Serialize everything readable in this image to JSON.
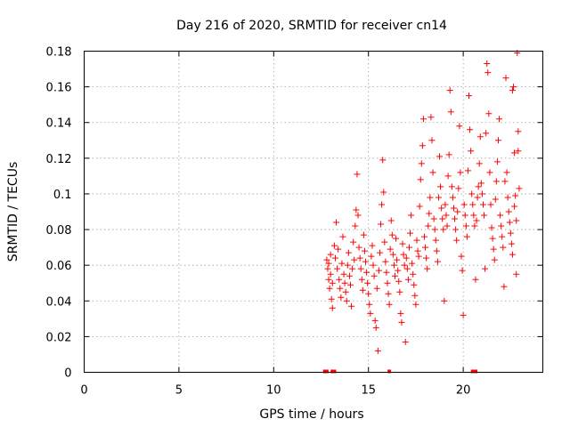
{
  "chart_data": {
    "type": "scatter",
    "title": "Day 216 of 2020, SRMTID for receiver cn14",
    "xlabel": "GPS time / hours",
    "ylabel": "SRMTID / TECUs",
    "xlim": [
      0,
      24.2
    ],
    "ylim": [
      0,
      0.18
    ],
    "xticks": [
      0,
      5,
      10,
      15,
      20
    ],
    "xtick_labels": [
      "0",
      "5",
      "10",
      "15",
      "20"
    ],
    "yticks": [
      0,
      0.02,
      0.04,
      0.06,
      0.08,
      0.1,
      0.12,
      0.14,
      0.16,
      0.18
    ],
    "ytick_labels": [
      "0",
      "0.02",
      "0.04",
      "0.06",
      "0.08",
      "0.1",
      "0.12",
      "0.14",
      "0.16",
      "0.18"
    ],
    "grid": true,
    "legend": "none",
    "marker": "+",
    "marker_color": "#ff0000",
    "series": [
      {
        "name": "SRMTID",
        "points": [
          [
            12.8,
            0.063
          ],
          [
            12.85,
            0.058
          ],
          [
            12.9,
            0.052
          ],
          [
            12.95,
            0.047
          ],
          [
            13.0,
            0.066
          ],
          [
            13.05,
            0.041
          ],
          [
            13.1,
            0.036
          ],
          [
            12.9,
            0.061
          ],
          [
            13.0,
            0.055
          ],
          [
            13.1,
            0.05
          ],
          [
            13.2,
            0.071
          ],
          [
            13.25,
            0.064
          ],
          [
            13.3,
            0.084
          ],
          [
            13.35,
            0.058
          ],
          [
            13.4,
            0.069
          ],
          [
            13.45,
            0.052
          ],
          [
            13.5,
            0.047
          ],
          [
            13.55,
            0.042
          ],
          [
            13.6,
            0.061
          ],
          [
            13.65,
            0.076
          ],
          [
            13.7,
            0.055
          ],
          [
            13.75,
            0.05
          ],
          [
            13.8,
            0.045
          ],
          [
            13.85,
            0.04
          ],
          [
            13.9,
            0.06
          ],
          [
            13.95,
            0.067
          ],
          [
            14.0,
            0.054
          ],
          [
            14.05,
            0.049
          ],
          [
            14.1,
            0.037
          ],
          [
            14.15,
            0.058
          ],
          [
            14.2,
            0.073
          ],
          [
            14.25,
            0.063
          ],
          [
            14.3,
            0.082
          ],
          [
            14.35,
            0.091
          ],
          [
            14.4,
            0.111
          ],
          [
            14.45,
            0.088
          ],
          [
            14.5,
            0.07
          ],
          [
            14.55,
            0.064
          ],
          [
            14.6,
            0.058
          ],
          [
            14.65,
            0.052
          ],
          [
            14.7,
            0.046
          ],
          [
            14.75,
            0.077
          ],
          [
            14.8,
            0.068
          ],
          [
            14.85,
            0.062
          ],
          [
            14.9,
            0.056
          ],
          [
            14.95,
            0.05
          ],
          [
            15.0,
            0.044
          ],
          [
            15.05,
            0.038
          ],
          [
            15.1,
            0.033
          ],
          [
            15.15,
            0.065
          ],
          [
            15.2,
            0.071
          ],
          [
            15.25,
            0.06
          ],
          [
            15.3,
            0.054
          ],
          [
            15.35,
            0.029
          ],
          [
            15.4,
            0.025
          ],
          [
            15.45,
            0.047
          ],
          [
            15.5,
            0.012
          ],
          [
            15.55,
            0.057
          ],
          [
            15.6,
            0.067
          ],
          [
            15.65,
            0.083
          ],
          [
            15.7,
            0.094
          ],
          [
            15.75,
            0.119
          ],
          [
            15.8,
            0.101
          ],
          [
            15.85,
            0.073
          ],
          [
            15.9,
            0.062
          ],
          [
            15.95,
            0.056
          ],
          [
            16.0,
            0.05
          ],
          [
            16.05,
            0.044
          ],
          [
            16.1,
            0.038
          ],
          [
            16.15,
            0.069
          ],
          [
            16.2,
            0.085
          ],
          [
            16.25,
            0.077
          ],
          [
            16.3,
            0.066
          ],
          [
            16.35,
            0.06
          ],
          [
            16.4,
            0.054
          ],
          [
            16.45,
            0.075
          ],
          [
            16.5,
            0.063
          ],
          [
            16.55,
            0.057
          ],
          [
            16.6,
            0.051
          ],
          [
            16.65,
            0.045
          ],
          [
            16.7,
            0.033
          ],
          [
            16.75,
            0.028
          ],
          [
            16.8,
            0.072
          ],
          [
            16.85,
            0.066
          ],
          [
            16.9,
            0.06
          ],
          [
            16.95,
            0.017
          ],
          [
            17.0,
            0.064
          ],
          [
            17.05,
            0.058
          ],
          [
            17.1,
            0.052
          ],
          [
            17.15,
            0.07
          ],
          [
            17.2,
            0.078
          ],
          [
            17.25,
            0.088
          ],
          [
            17.3,
            0.061
          ],
          [
            17.35,
            0.055
          ],
          [
            17.4,
            0.049
          ],
          [
            17.45,
            0.043
          ],
          [
            17.5,
            0.038
          ],
          [
            17.55,
            0.074
          ],
          [
            17.6,
            0.068
          ],
          [
            17.65,
            0.065
          ],
          [
            17.7,
            0.093
          ],
          [
            17.75,
            0.108
          ],
          [
            17.8,
            0.117
          ],
          [
            17.85,
            0.127
          ],
          [
            17.9,
            0.142
          ],
          [
            17.95,
            0.076
          ],
          [
            18.0,
            0.07
          ],
          [
            18.05,
            0.064
          ],
          [
            18.1,
            0.058
          ],
          [
            18.15,
            0.082
          ],
          [
            18.2,
            0.089
          ],
          [
            18.25,
            0.098
          ],
          [
            18.3,
            0.143
          ],
          [
            18.35,
            0.13
          ],
          [
            18.4,
            0.112
          ],
          [
            18.45,
            0.086
          ],
          [
            18.5,
            0.08
          ],
          [
            18.55,
            0.074
          ],
          [
            18.6,
            0.068
          ],
          [
            18.65,
            0.062
          ],
          [
            18.7,
            0.098
          ],
          [
            18.75,
            0.121
          ],
          [
            18.8,
            0.104
          ],
          [
            18.85,
            0.092
          ],
          [
            18.9,
            0.086
          ],
          [
            18.95,
            0.08
          ],
          [
            19.0,
            0.04
          ],
          [
            19.05,
            0.094
          ],
          [
            19.1,
            0.088
          ],
          [
            19.15,
            0.082
          ],
          [
            19.2,
            0.11
          ],
          [
            19.25,
            0.122
          ],
          [
            19.3,
            0.158
          ],
          [
            19.35,
            0.146
          ],
          [
            19.4,
            0.104
          ],
          [
            19.45,
            0.098
          ],
          [
            19.5,
            0.092
          ],
          [
            19.55,
            0.086
          ],
          [
            19.6,
            0.08
          ],
          [
            19.65,
            0.074
          ],
          [
            19.7,
            0.09
          ],
          [
            19.75,
            0.103
          ],
          [
            19.8,
            0.138
          ],
          [
            19.85,
            0.112
          ],
          [
            19.9,
            0.065
          ],
          [
            19.95,
            0.057
          ],
          [
            20.0,
            0.032
          ],
          [
            20.05,
            0.094
          ],
          [
            20.1,
            0.088
          ],
          [
            20.15,
            0.082
          ],
          [
            20.2,
            0.076
          ],
          [
            20.25,
            0.113
          ],
          [
            20.3,
            0.155
          ],
          [
            20.35,
            0.136
          ],
          [
            20.4,
            0.124
          ],
          [
            20.45,
            0.1
          ],
          [
            20.5,
            0.094
          ],
          [
            20.55,
            0.088
          ],
          [
            20.6,
            0.082
          ],
          [
            20.65,
            0.052
          ],
          [
            20.7,
            0.085
          ],
          [
            20.75,
            0.098
          ],
          [
            20.8,
            0.104
          ],
          [
            20.85,
            0.117
          ],
          [
            20.9,
            0.132
          ],
          [
            20.95,
            0.106
          ],
          [
            21.0,
            0.1
          ],
          [
            21.05,
            0.094
          ],
          [
            21.1,
            0.088
          ],
          [
            21.15,
            0.058
          ],
          [
            21.2,
            0.134
          ],
          [
            21.25,
            0.173
          ],
          [
            21.3,
            0.168
          ],
          [
            21.35,
            0.145
          ],
          [
            21.4,
            0.112
          ],
          [
            21.45,
            0.094
          ],
          [
            21.5,
            0.081
          ],
          [
            21.55,
            0.075
          ],
          [
            21.6,
            0.069
          ],
          [
            21.65,
            0.063
          ],
          [
            21.7,
            0.097
          ],
          [
            21.75,
            0.107
          ],
          [
            21.8,
            0.118
          ],
          [
            21.85,
            0.13
          ],
          [
            21.9,
            0.142
          ],
          [
            21.95,
            0.088
          ],
          [
            22.0,
            0.082
          ],
          [
            22.05,
            0.076
          ],
          [
            22.1,
            0.07
          ],
          [
            22.15,
            0.048
          ],
          [
            22.2,
            0.107
          ],
          [
            22.25,
            0.165
          ],
          [
            22.3,
            0.112
          ],
          [
            22.35,
            0.098
          ],
          [
            22.4,
            0.09
          ],
          [
            22.45,
            0.084
          ],
          [
            22.5,
            0.078
          ],
          [
            22.55,
            0.072
          ],
          [
            22.6,
            0.066
          ],
          [
            22.65,
            0.16
          ],
          [
            22.7,
            0.123
          ],
          [
            22.75,
            0.099
          ],
          [
            22.8,
            0.085
          ],
          [
            22.85,
            0.179
          ],
          [
            22.9,
            0.135
          ],
          [
            22.95,
            0.103
          ],
          [
            22.7,
            0.093
          ],
          [
            22.8,
            0.055
          ],
          [
            22.9,
            0.124
          ],
          [
            22.6,
            0.158
          ]
        ]
      }
    ],
    "baseline_markers_x": [
      12.7,
      12.8,
      13.1,
      13.2,
      16.1,
      20.5,
      20.65
    ]
  }
}
